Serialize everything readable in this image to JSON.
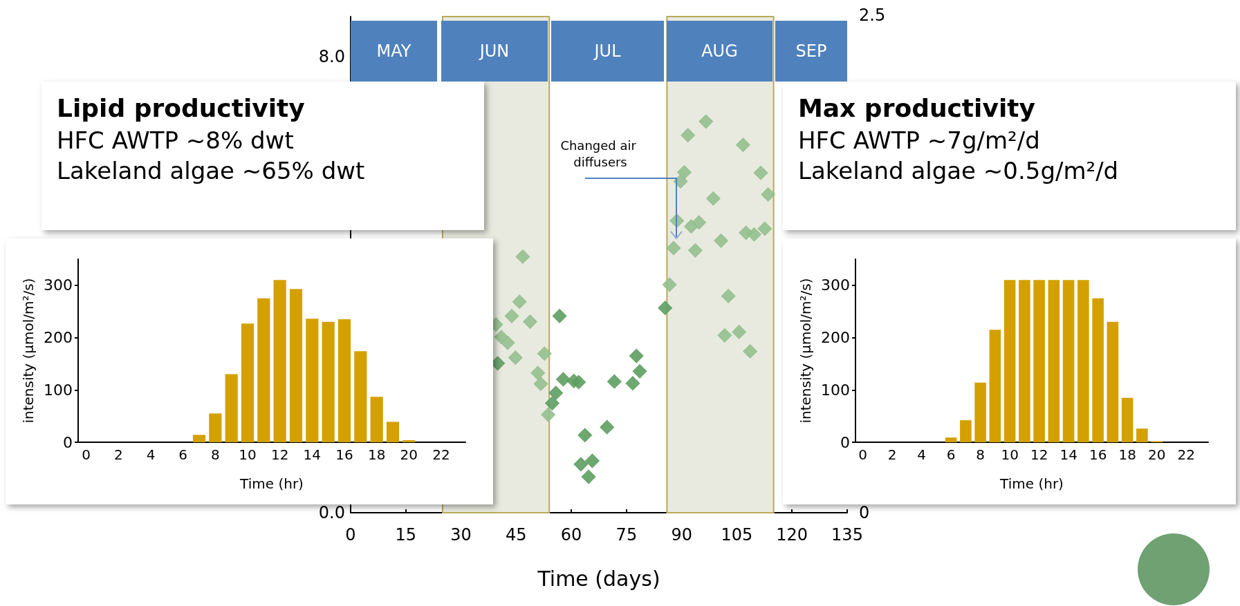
{
  "chart_data": [
    {
      "type": "scatter",
      "xlabel": "Time (days)",
      "xlim": [
        0,
        135
      ],
      "xticks": [
        0,
        15,
        30,
        45,
        60,
        75,
        90,
        105,
        120,
        135
      ],
      "ylim": [
        0,
        8.7
      ],
      "yticks": [
        {
          "value": 0,
          "label": "0.0"
        },
        {
          "value": 8,
          "label": "8.0"
        }
      ],
      "marker": "diamond",
      "grid": false,
      "series": [
        {
          "color": "#93c08e",
          "x": [
            39.5,
            41.0,
            42.7,
            43.8,
            44.8,
            45.9,
            46.8,
            48.8,
            50.9,
            51.7,
            52.7,
            53.7,
            86.7,
            87.8,
            88.7,
            89.7,
            90.7,
            91.7,
            92.6,
            93.7,
            94.7,
            96.6,
            98.6,
            100.7,
            101.7,
            102.7,
            105.6,
            106.7,
            107.5,
            108.6,
            109.7,
            111.5,
            112.6,
            113.5
          ],
          "values": [
            3.3,
            3.08,
            2.98,
            3.45,
            2.72,
            3.7,
            4.49,
            3.35,
            2.45,
            2.26,
            2.79,
            1.72,
            4.0,
            4.64,
            5.12,
            5.81,
            5.97,
            6.62,
            5.02,
            4.6,
            5.09,
            6.86,
            5.51,
            4.77,
            3.11,
            3.8,
            3.17,
            6.45,
            4.91,
            2.83,
            4.88,
            5.96,
            4.98,
            5.58
          ]
        },
        {
          "color": "#5e9e62",
          "x": [
            40.0,
            54.8,
            55.8,
            56.8,
            57.8,
            60.7,
            62.0,
            62.6,
            63.7,
            64.7,
            65.7,
            69.7,
            71.7,
            76.7,
            77.7,
            78.6,
            85.5
          ],
          "values": [
            2.62,
            1.92,
            2.1,
            3.45,
            2.34,
            2.31,
            2.29,
            0.85,
            1.36,
            0.63,
            0.91,
            1.5,
            2.3,
            2.27,
            2.75,
            2.48,
            3.59
          ]
        }
      ],
      "bands": [
        {
          "axis": "x",
          "from": 25,
          "to": 54,
          "color": "#e9eadf"
        },
        {
          "axis": "x",
          "from": 86,
          "to": 115,
          "color": "#e9eadf"
        }
      ],
      "annotations": [
        "MAY",
        "JUN",
        "JUL",
        "AUG",
        "SEP",
        "Changed air diffusers",
        "2.5",
        "0"
      ]
    },
    {
      "type": "other",
      "title": "Lipid productivity",
      "annotations": [
        "HFC AWTP ~8% dwt",
        "Lakeland algae ~65% dwt"
      ]
    },
    {
      "type": "bar",
      "xlabel": "Time (hr)",
      "ylabel": "intensity (µmol/m²/s)",
      "color": "#d4a000",
      "ylim": [
        0,
        350
      ],
      "yticks": [
        0,
        100,
        200,
        300
      ],
      "grid": false,
      "categories": [
        "0",
        null,
        "2",
        null,
        "4",
        null,
        "6",
        null,
        "8",
        null,
        "10",
        null,
        "12",
        null,
        "14",
        null,
        "16",
        null,
        "18",
        null,
        "20",
        null,
        "22",
        null
      ],
      "values": [
        0,
        0,
        0,
        0,
        0,
        0,
        0,
        14,
        55,
        130,
        227,
        275,
        310,
        293,
        236,
        230,
        235,
        174,
        87,
        39,
        4,
        0,
        0,
        0
      ]
    },
    {
      "type": "other",
      "title": "Max productivity",
      "annotations": [
        "HFC AWTP ~7g/m²/d",
        "Lakeland algae ~0.5g/m²/d"
      ]
    },
    {
      "type": "bar",
      "xlabel": "Time (hr)",
      "ylabel": "intensity (µmol/m²/s)",
      "color": "#d4a000",
      "ylim": [
        0,
        350
      ],
      "yticks": [
        0,
        100,
        200,
        300
      ],
      "grid": false,
      "categories": [
        "0",
        null,
        "2",
        null,
        "4",
        null,
        "6",
        null,
        "8",
        null,
        "10",
        null,
        "12",
        null,
        "14",
        null,
        "16",
        null,
        "18",
        null,
        "20",
        null,
        "22",
        null
      ],
      "values": [
        0,
        0,
        0,
        0,
        0,
        0,
        9,
        42,
        114,
        215,
        310,
        310,
        310,
        310,
        310,
        310,
        275,
        230,
        85,
        26,
        2,
        0,
        0,
        0
      ]
    }
  ]
}
